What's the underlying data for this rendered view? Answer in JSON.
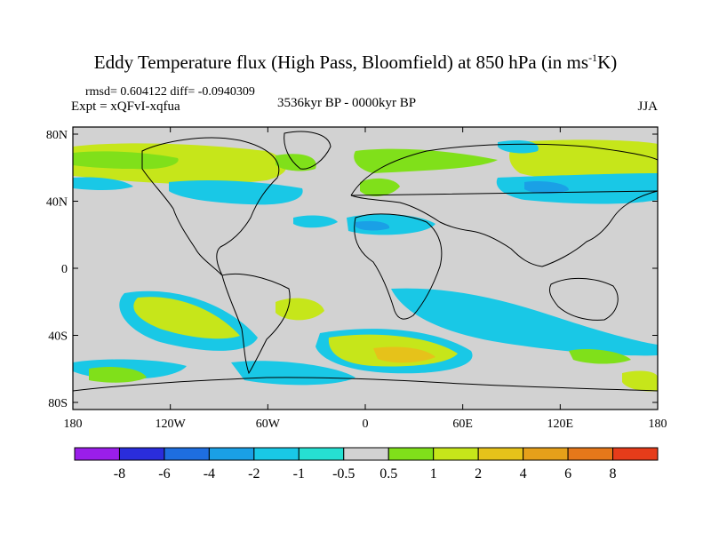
{
  "title": {
    "prefix": "Eddy Temperature flux (High Pass, Bloomfield) at 850 hPa (in ms",
    "superscript": "-1",
    "suffix": "K)"
  },
  "stats_line": "rmsd= 0.604122 diff= -0.0940309",
  "experiment_line": "Expt = xQFvI-xqfua",
  "period_label": "3536kyr BP - 0000kyr BP",
  "season_label": "JJA",
  "axes": {
    "longitude_ticks": [
      "180",
      "120W",
      "60W",
      "0",
      "60E",
      "120E",
      "180"
    ],
    "latitude_ticks": [
      "80N",
      "40N",
      "0",
      "40S",
      "80S"
    ]
  },
  "colorbar": {
    "colors": [
      "#9a1eea",
      "#2a2ddc",
      "#1e6ee0",
      "#1aa0e6",
      "#19c8e6",
      "#26e0d2",
      "#d2d2d2",
      "#80e01a",
      "#c6e61a",
      "#e6c21a",
      "#e6a01a",
      "#e6781a",
      "#e63c1a"
    ],
    "labels": [
      "-8",
      "-6",
      "-4",
      "-2",
      "-1",
      "-0.5",
      "0.5",
      "1",
      "2",
      "4",
      "6",
      "8"
    ]
  },
  "colors": {
    "ocean_background": "#d2d2d2",
    "coastline": "#000000"
  }
}
